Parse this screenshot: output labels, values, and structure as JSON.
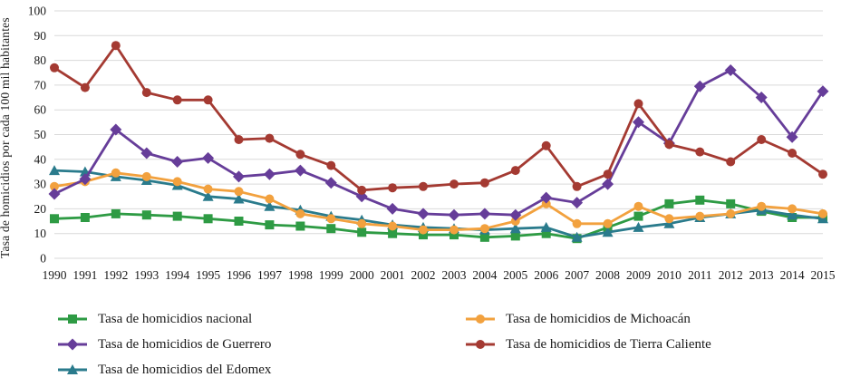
{
  "chart_data": {
    "type": "line",
    "title": "",
    "xlabel": "",
    "ylabel": "Tasa de homicidios por cada 100 mil habitantes",
    "ylim": [
      0,
      100
    ],
    "ytick_step": 10,
    "grid": "horizontal",
    "legend_position": "bottom",
    "x": [
      1990,
      1991,
      1992,
      1993,
      1994,
      1995,
      1996,
      1997,
      1998,
      1999,
      2000,
      2001,
      2002,
      2003,
      2004,
      2005,
      2006,
      2007,
      2008,
      2009,
      2010,
      2011,
      2012,
      2013,
      2014,
      2015
    ],
    "series": [
      {
        "name": "Tasa de homicidios nacional",
        "color": "#2e9b44",
        "marker": "square",
        "values": [
          16,
          16.5,
          18,
          17.5,
          17,
          16,
          15,
          13.5,
          13,
          12,
          10.5,
          10,
          9.5,
          9.5,
          8.5,
          9,
          10,
          8,
          12.5,
          17,
          22,
          23.5,
          22,
          19,
          16.5,
          16.5
        ]
      },
      {
        "name": "Tasa de homicidios de Guerrero",
        "color": "#663d99",
        "marker": "diamond",
        "values": [
          26,
          32,
          52,
          42.5,
          39,
          40.5,
          33,
          34,
          35.5,
          30.5,
          25,
          20,
          18,
          17.5,
          18,
          17.5,
          24.5,
          22.5,
          30,
          55,
          46.5,
          69.5,
          76,
          65,
          49,
          67.5
        ]
      },
      {
        "name": "Tasa de homicidios del Edomex",
        "color": "#2a7b8c",
        "marker": "triangle",
        "values": [
          35.5,
          35,
          33,
          31.5,
          29.5,
          25,
          24,
          21,
          19.5,
          17,
          15.5,
          13.5,
          12.5,
          12,
          11.5,
          12,
          12.5,
          8.5,
          10.5,
          12.5,
          14,
          16.5,
          18,
          19.5,
          17.5,
          16
        ]
      },
      {
        "name": "Tasa de homicidios de Michoacán",
        "color": "#f2a13e",
        "marker": "circle",
        "values": [
          29,
          31,
          34.5,
          33,
          31,
          28,
          27,
          24,
          18,
          16,
          14,
          13,
          11.5,
          11.5,
          12,
          15,
          22,
          14,
          14,
          21,
          16,
          17,
          18,
          21,
          20,
          18
        ]
      },
      {
        "name": "Tasa de homicidios de Tierra Caliente",
        "color": "#a43a32",
        "marker": "circle",
        "values": [
          77,
          69,
          86,
          67,
          64,
          64,
          48,
          48.5,
          42,
          37.5,
          27.5,
          28.5,
          29,
          30,
          30.5,
          35.5,
          45.5,
          29,
          34,
          62.5,
          46,
          43,
          39,
          48,
          42.5,
          34
        ]
      }
    ]
  },
  "colors": {
    "grid": "#d9d9d9",
    "text": "#1a1a1a"
  }
}
